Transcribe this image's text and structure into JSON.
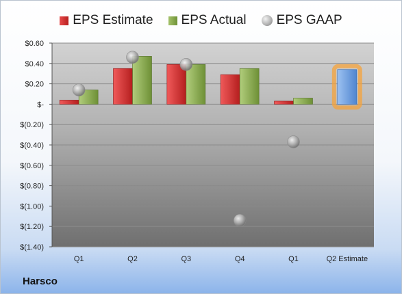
{
  "company": "Harsco",
  "legend": {
    "estimate": "EPS Estimate",
    "actual": "EPS Actual",
    "gaap": "EPS GAAP"
  },
  "colors": {
    "estimate": "#d42a2a",
    "actual": "#88ab4a",
    "gaap": "#a8a8a8",
    "forecast": "#6f9fdc",
    "forecast_glow": "#f5a33b"
  },
  "chart_data": {
    "type": "bar",
    "categories": [
      "Q1",
      "Q2",
      "Q3",
      "Q4",
      "Q1",
      "Q2 Estimate"
    ],
    "series": [
      {
        "name": "EPS Estimate",
        "values": [
          0.04,
          0.35,
          0.39,
          0.29,
          0.03,
          null
        ]
      },
      {
        "name": "EPS Actual",
        "values": [
          0.14,
          0.47,
          0.39,
          0.35,
          0.06,
          null
        ]
      },
      {
        "name": "EPS GAAP",
        "values": [
          0.14,
          0.46,
          0.39,
          -1.14,
          -0.37,
          null
        ]
      }
    ],
    "forecast": {
      "category": "Q2 Estimate",
      "value": 0.34
    },
    "ylim": [
      -1.4,
      0.6
    ],
    "yticks": [
      0.6,
      0.4,
      0.2,
      0,
      -0.2,
      -0.4,
      -0.6,
      -0.8,
      -1.0,
      -1.2,
      -1.4
    ],
    "ytick_labels": [
      "$0.60",
      "$0.40",
      "$0.20",
      "$-",
      "$(0.20)",
      "$(0.40)",
      "$(0.60)",
      "$(0.80)",
      "$(1.00)",
      "$(1.20)",
      "$(1.40)"
    ],
    "grid": true,
    "legend_position": "top"
  }
}
